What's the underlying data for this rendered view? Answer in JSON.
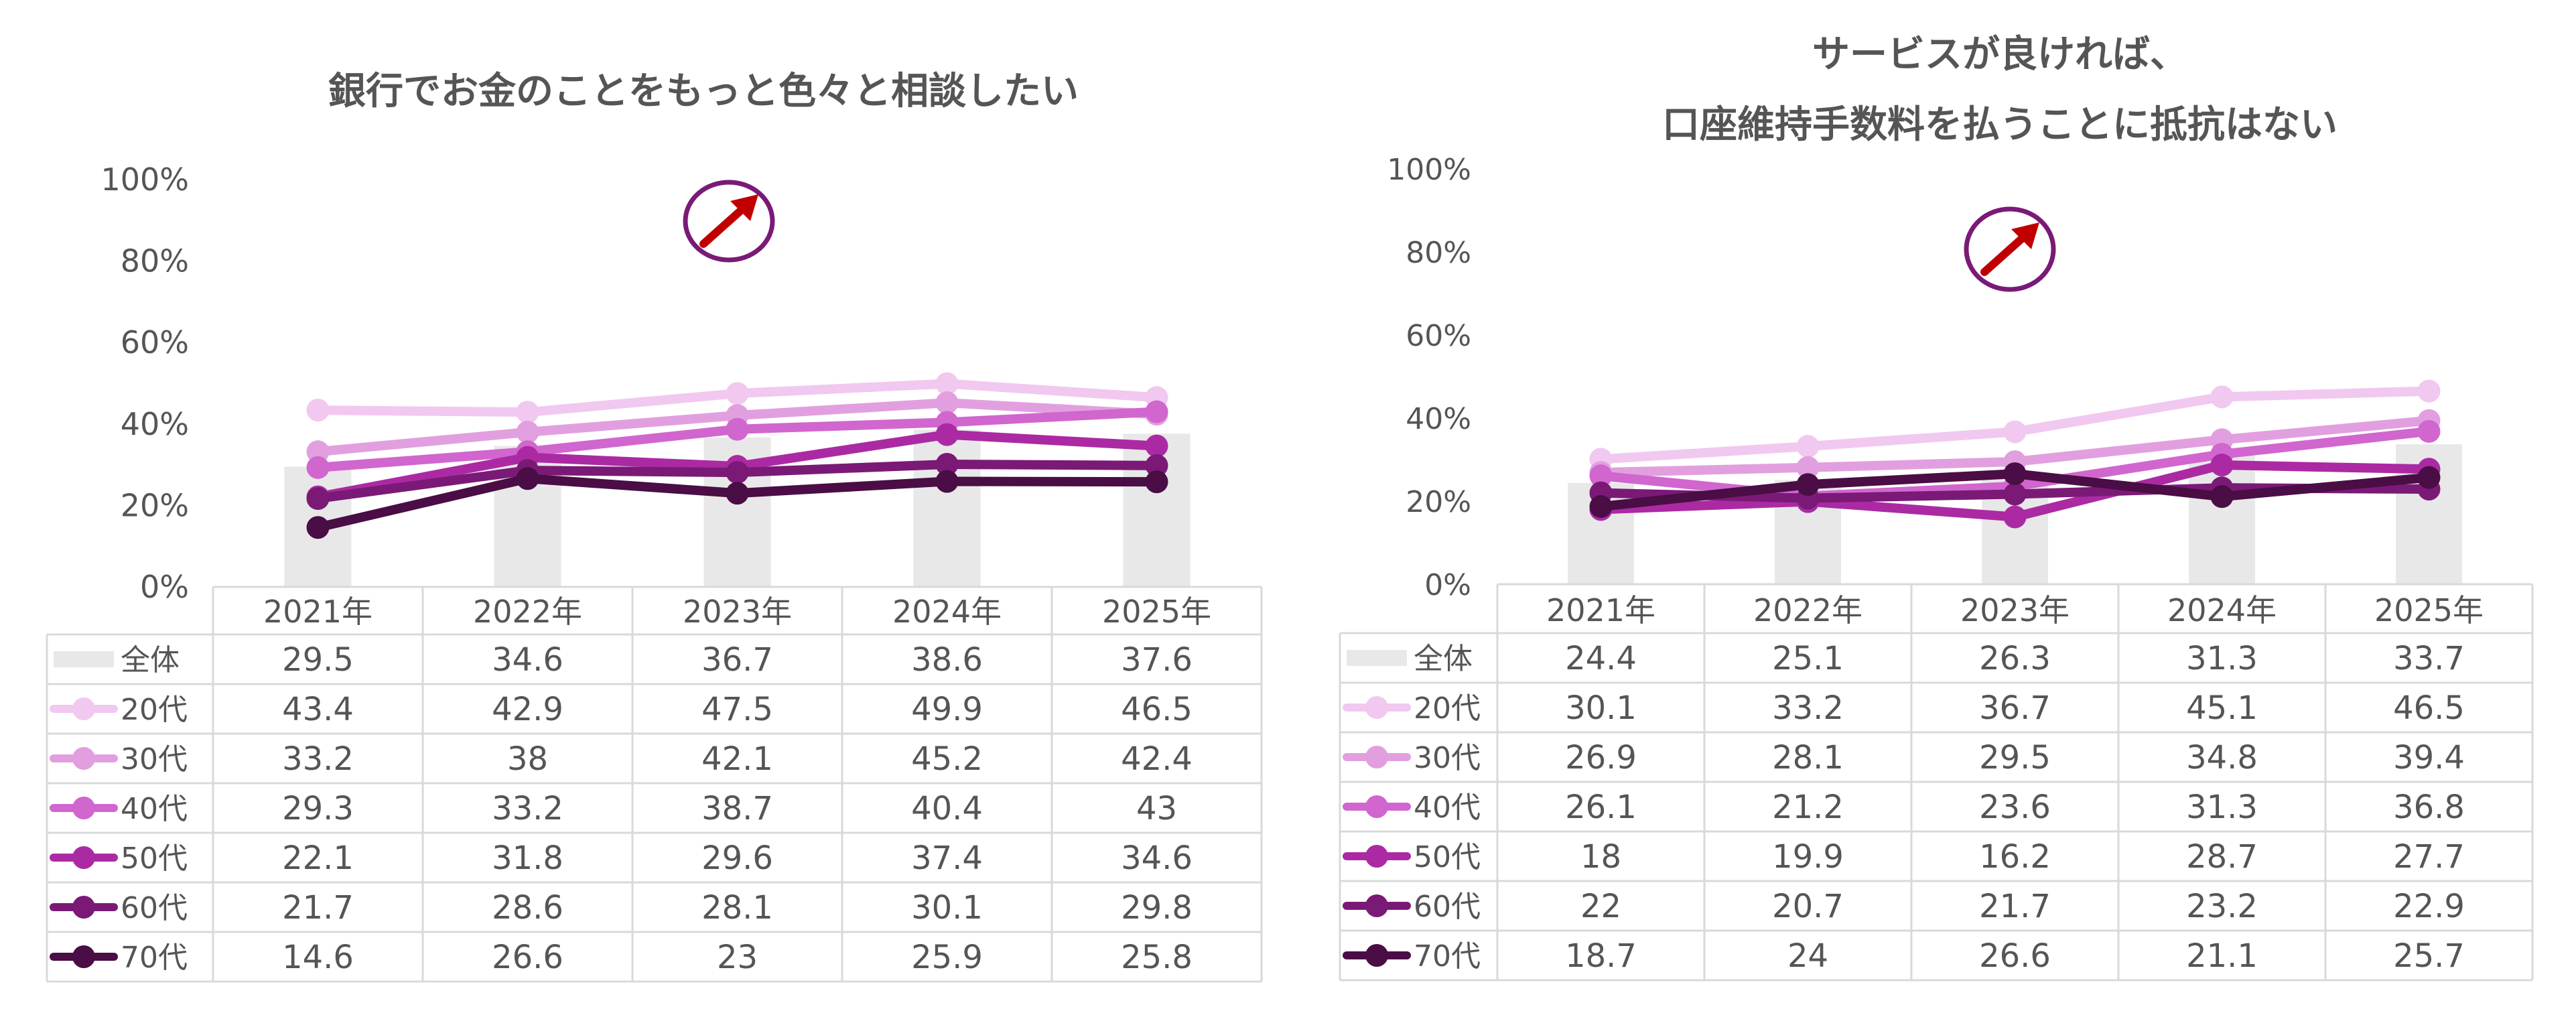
{
  "chart_data": [
    {
      "type": "line",
      "title": "銀行でお金のことをもっと色々と相談したい",
      "categories": [
        "2021年",
        "2022年",
        "2023年",
        "2024年",
        "2025年"
      ],
      "ylim": [
        0,
        100
      ],
      "yticks": [
        "0%",
        "20%",
        "40%",
        "60%",
        "80%",
        "100%"
      ],
      "grid": false,
      "legend": "data-table",
      "trend_icon": "up-right-arrow-icon",
      "bar_series": {
        "name": "全体",
        "values": [
          29.5,
          34.6,
          36.7,
          38.6,
          37.6
        ],
        "color": "#e8e8e8"
      },
      "series": [
        {
          "name": "20代",
          "values": [
            43.4,
            42.9,
            47.5,
            49.9,
            46.5
          ],
          "color": "#f1c8ef"
        },
        {
          "name": "30代",
          "values": [
            33.2,
            38,
            42.1,
            45.2,
            42.4
          ],
          "color": "#e29fdf"
        },
        {
          "name": "40代",
          "values": [
            29.3,
            33.2,
            38.7,
            40.4,
            43
          ],
          "color": "#d166cf"
        },
        {
          "name": "50代",
          "values": [
            22.1,
            31.8,
            29.6,
            37.4,
            34.6
          ],
          "color": "#ab2aa3"
        },
        {
          "name": "60代",
          "values": [
            21.7,
            28.6,
            28.1,
            30.1,
            29.8
          ],
          "color": "#7a1a76"
        },
        {
          "name": "70代",
          "values": [
            14.6,
            26.6,
            23,
            25.9,
            25.8
          ],
          "color": "#4a0d45"
        }
      ],
      "table_rows": [
        [
          "29.5",
          "34.6",
          "36.7",
          "38.6",
          "37.6"
        ],
        [
          "43.4",
          "42.9",
          "47.5",
          "49.9",
          "46.5"
        ],
        [
          "33.2",
          "38",
          "42.1",
          "45.2",
          "42.4"
        ],
        [
          "29.3",
          "33.2",
          "38.7",
          "40.4",
          "43"
        ],
        [
          "22.1",
          "31.8",
          "29.6",
          "37.4",
          "34.6"
        ],
        [
          "21.7",
          "28.6",
          "28.1",
          "30.1",
          "29.8"
        ],
        [
          "14.6",
          "26.6",
          "23",
          "25.9",
          "25.8"
        ]
      ]
    },
    {
      "type": "line",
      "title": "サービスが良ければ、\n口座維持手数料を払うことに抵抗はない",
      "categories": [
        "2021年",
        "2022年",
        "2023年",
        "2024年",
        "2025年"
      ],
      "ylim": [
        0,
        100
      ],
      "yticks": [
        "0%",
        "20%",
        "40%",
        "60%",
        "80%",
        "100%"
      ],
      "grid": false,
      "legend": "data-table",
      "trend_icon": "up-right-arrow-icon",
      "bar_series": {
        "name": "全体",
        "values": [
          24.4,
          25.1,
          26.3,
          31.3,
          33.7
        ],
        "color": "#e8e8e8"
      },
      "series": [
        {
          "name": "20代",
          "values": [
            30.1,
            33.2,
            36.7,
            45.1,
            46.5
          ],
          "color": "#f1c8ef"
        },
        {
          "name": "30代",
          "values": [
            26.9,
            28.1,
            29.5,
            34.8,
            39.4
          ],
          "color": "#e29fdf"
        },
        {
          "name": "40代",
          "values": [
            26.1,
            21.2,
            23.6,
            31.3,
            36.8
          ],
          "color": "#d166cf"
        },
        {
          "name": "50代",
          "values": [
            18,
            19.9,
            16.2,
            28.7,
            27.7
          ],
          "color": "#ab2aa3"
        },
        {
          "name": "60代",
          "values": [
            22,
            20.7,
            21.7,
            23.2,
            22.9
          ],
          "color": "#7a1a76"
        },
        {
          "name": "70代",
          "values": [
            18.7,
            24,
            26.6,
            21.1,
            25.7
          ],
          "color": "#4a0d45"
        }
      ],
      "table_rows": [
        [
          "24.4",
          "25.1",
          "26.3",
          "31.3",
          "33.7"
        ],
        [
          "30.1",
          "33.2",
          "36.7",
          "45.1",
          "46.5"
        ],
        [
          "26.9",
          "28.1",
          "29.5",
          "34.8",
          "39.4"
        ],
        [
          "26.1",
          "21.2",
          "23.6",
          "31.3",
          "36.8"
        ],
        [
          "18",
          "19.9",
          "16.2",
          "28.7",
          "27.7"
        ],
        [
          "22",
          "20.7",
          "21.7",
          "23.2",
          "22.9"
        ],
        [
          "18.7",
          "24",
          "26.6",
          "21.1",
          "25.7"
        ]
      ]
    }
  ]
}
